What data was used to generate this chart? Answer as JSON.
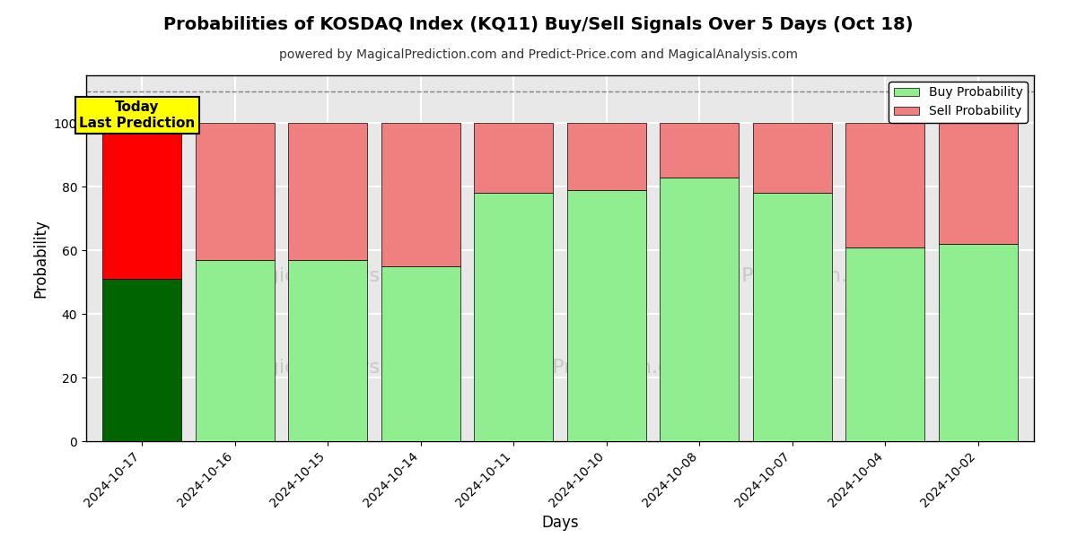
{
  "title": "Probabilities of KOSDAQ Index (KQ11) Buy/Sell Signals Over 5 Days (Oct 18)",
  "subtitle": "powered by MagicalPrediction.com and Predict-Price.com and MagicalAnalysis.com",
  "xlabel": "Days",
  "ylabel": "Probability",
  "dates": [
    "2024-10-17",
    "2024-10-16",
    "2024-10-15",
    "2024-10-14",
    "2024-10-11",
    "2024-10-10",
    "2024-10-08",
    "2024-10-07",
    "2024-10-04",
    "2024-10-02"
  ],
  "buy_values": [
    51,
    57,
    57,
    55,
    78,
    79,
    83,
    78,
    61,
    62
  ],
  "sell_values": [
    49,
    43,
    43,
    45,
    22,
    21,
    17,
    22,
    39,
    38
  ],
  "today_index": 0,
  "today_buy_color": "#006400",
  "today_sell_color": "#FF0000",
  "normal_buy_color": "#90EE90",
  "normal_sell_color": "#F08080",
  "bar_width": 0.85,
  "ylim": [
    0,
    115
  ],
  "yticks": [
    0,
    20,
    40,
    60,
    80,
    100
  ],
  "dashed_line_y": 110,
  "annotation_text": "Today\nLast Prediction",
  "annotation_bg_color": "#FFFF00",
  "legend_buy_label": "Buy Probability",
  "legend_sell_label": "Sell Probability",
  "background_color": "#FFFFFF",
  "grid_color": "#FFFFFF",
  "plot_bg_color": "#E8E8E8"
}
